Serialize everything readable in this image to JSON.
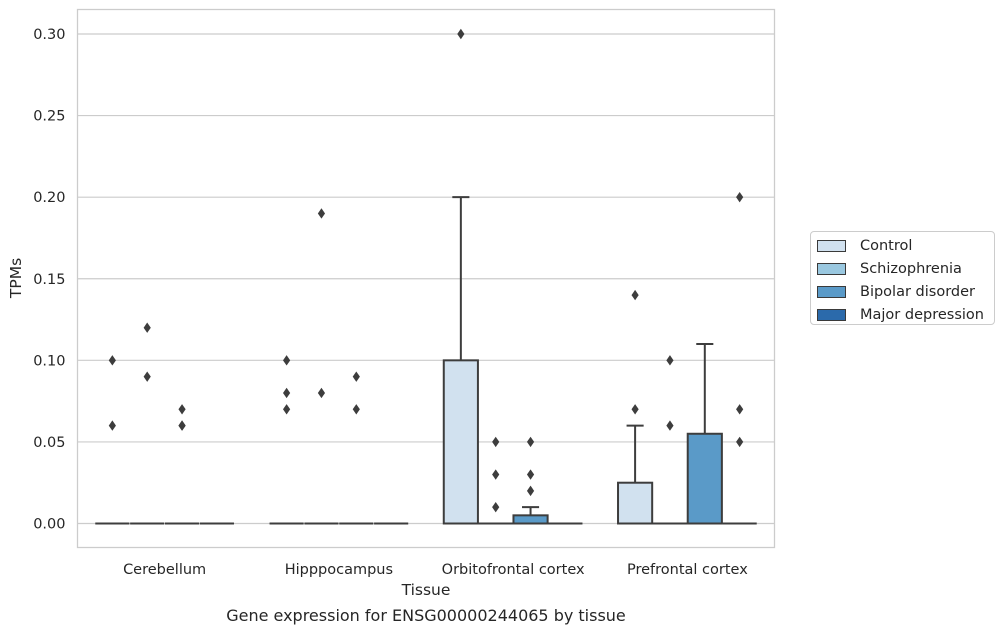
{
  "chart_data": {
    "type": "box",
    "xlabel": "Tissue",
    "ylabel": "TPMs",
    "caption": "Gene expression for ENSG00000244065 by tissue",
    "categories": [
      "Cerebellum",
      "Hipppocampus",
      "Orbitofrontal cortex",
      "Prefrontal cortex"
    ],
    "ylim": [
      -0.015,
      0.315
    ],
    "yticks": [
      "0.00",
      "0.05",
      "0.10",
      "0.15",
      "0.20",
      "0.25",
      "0.30"
    ],
    "grid": true,
    "legend_position": "right",
    "series": [
      {
        "name": "Control",
        "color": "#d1e1ef",
        "boxes": [
          {
            "q1": 0,
            "median": 0,
            "q3": 0,
            "whisker_low": 0,
            "whisker_high": 0,
            "outliers": [
              0.06,
              0.1
            ]
          },
          {
            "q1": 0,
            "median": 0,
            "q3": 0,
            "whisker_low": 0,
            "whisker_high": 0,
            "outliers": [
              0.07,
              0.08,
              0.1
            ]
          },
          {
            "q1": 0,
            "median": 0,
            "q3": 0.1,
            "whisker_low": 0,
            "whisker_high": 0.2,
            "outliers": [
              0.3
            ]
          },
          {
            "q1": 0,
            "median": 0,
            "q3": 0.025,
            "whisker_low": 0,
            "whisker_high": 0.06,
            "outliers": [
              0.07,
              0.14
            ]
          }
        ]
      },
      {
        "name": "Schizophrenia",
        "color": "#9ac8e0",
        "boxes": [
          {
            "q1": 0,
            "median": 0,
            "q3": 0,
            "whisker_low": 0,
            "whisker_high": 0,
            "outliers": [
              0.09,
              0.12
            ]
          },
          {
            "q1": 0,
            "median": 0,
            "q3": 0,
            "whisker_low": 0,
            "whisker_high": 0,
            "outliers": [
              0.08,
              0.19
            ]
          },
          {
            "q1": 0,
            "median": 0,
            "q3": 0,
            "whisker_low": 0,
            "whisker_high": 0,
            "outliers": [
              0.01,
              0.03,
              0.05
            ]
          },
          {
            "q1": 0,
            "median": 0,
            "q3": 0,
            "whisker_low": 0,
            "whisker_high": 0,
            "outliers": [
              0.06,
              0.1
            ]
          }
        ]
      },
      {
        "name": "Bipolar disorder",
        "color": "#5a9ac8",
        "boxes": [
          {
            "q1": 0,
            "median": 0,
            "q3": 0,
            "whisker_low": 0,
            "whisker_high": 0,
            "outliers": [
              0.06,
              0.06,
              0.07
            ]
          },
          {
            "q1": 0,
            "median": 0,
            "q3": 0,
            "whisker_low": 0,
            "whisker_high": 0,
            "outliers": [
              0.07,
              0.09
            ]
          },
          {
            "q1": 0,
            "median": 0,
            "q3": 0.005,
            "whisker_low": 0,
            "whisker_high": 0.01,
            "outliers": [
              0.02,
              0.03,
              0.05
            ]
          },
          {
            "q1": 0,
            "median": 0,
            "q3": 0.055,
            "whisker_low": 0,
            "whisker_high": 0.11,
            "outliers": []
          }
        ]
      },
      {
        "name": "Major depression",
        "color": "#2b6aab",
        "boxes": [
          {
            "q1": 0,
            "median": 0,
            "q3": 0,
            "whisker_low": 0,
            "whisker_high": 0,
            "outliers": []
          },
          {
            "q1": 0,
            "median": 0,
            "q3": 0,
            "whisker_low": 0,
            "whisker_high": 0,
            "outliers": []
          },
          {
            "q1": 0,
            "median": 0,
            "q3": 0,
            "whisker_low": 0,
            "whisker_high": 0,
            "outliers": []
          },
          {
            "q1": 0,
            "median": 0,
            "q3": 0,
            "whisker_low": 0,
            "whisker_high": 0,
            "outliers": [
              0.05,
              0.07,
              0.2
            ]
          }
        ]
      }
    ]
  }
}
